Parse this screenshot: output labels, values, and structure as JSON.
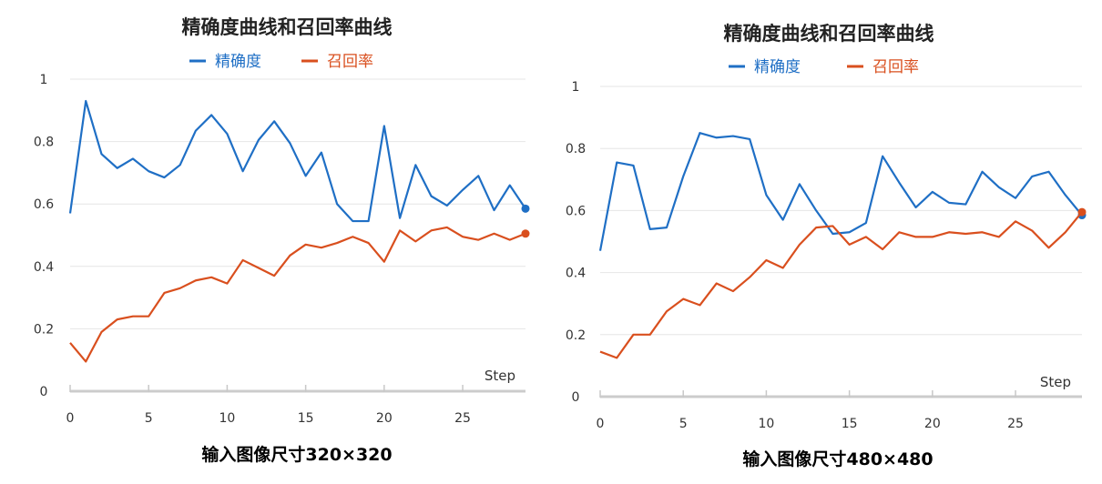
{
  "chart_data": [
    {
      "type": "line",
      "title": "精确度曲线和召回率曲线",
      "caption": "输入图像尺寸320×320",
      "xlabel": "Step",
      "ylabel": "",
      "xlim": [
        0,
        29
      ],
      "ylim": [
        0,
        1
      ],
      "yticks": [
        "0",
        "0.2",
        "0.4",
        "0.6",
        "0.8",
        "1"
      ],
      "xticks": [
        "0",
        "5",
        "10",
        "15",
        "20",
        "25"
      ],
      "grid": true,
      "legend_position": "top-center",
      "series": [
        {
          "name": "精确度",
          "color": "#1f6fc5",
          "values": [
            0.57,
            0.93,
            0.76,
            0.715,
            0.745,
            0.705,
            0.685,
            0.725,
            0.835,
            0.885,
            0.825,
            0.705,
            0.805,
            0.865,
            0.795,
            0.69,
            0.765,
            0.6,
            0.545,
            0.545,
            0.85,
            0.555,
            0.725,
            0.625,
            0.595,
            0.645,
            0.69,
            0.58,
            0.66,
            0.585
          ]
        },
        {
          "name": "召回率",
          "color": "#d94f1e",
          "values": [
            0.155,
            0.095,
            0.19,
            0.23,
            0.24,
            0.24,
            0.315,
            0.33,
            0.355,
            0.365,
            0.345,
            0.42,
            0.395,
            0.37,
            0.435,
            0.47,
            0.46,
            0.475,
            0.495,
            0.475,
            0.415,
            0.515,
            0.48,
            0.515,
            0.525,
            0.495,
            0.485,
            0.505,
            0.485,
            0.505
          ]
        }
      ]
    },
    {
      "type": "line",
      "title": "精确度曲线和召回率曲线",
      "caption": "输入图像尺寸480×480",
      "xlabel": "Step",
      "ylabel": "",
      "xlim": [
        0,
        29
      ],
      "ylim": [
        0,
        1
      ],
      "yticks": [
        "0",
        "0.2",
        "0.4",
        "0.6",
        "0.8",
        "1"
      ],
      "xticks": [
        "0",
        "5",
        "10",
        "15",
        "20",
        "25"
      ],
      "grid": true,
      "legend_position": "top-center",
      "series": [
        {
          "name": "精确度",
          "color": "#1f6fc5",
          "values": [
            0.47,
            0.755,
            0.745,
            0.54,
            0.545,
            0.71,
            0.85,
            0.835,
            0.84,
            0.83,
            0.65,
            0.57,
            0.685,
            0.6,
            0.525,
            0.53,
            0.56,
            0.775,
            0.69,
            0.61,
            0.66,
            0.625,
            0.62,
            0.725,
            0.675,
            0.64,
            0.71,
            0.725,
            0.65,
            0.585
          ]
        },
        {
          "name": "召回率",
          "color": "#d94f1e",
          "values": [
            0.145,
            0.125,
            0.2,
            0.2,
            0.275,
            0.315,
            0.295,
            0.365,
            0.34,
            0.385,
            0.44,
            0.415,
            0.49,
            0.545,
            0.55,
            0.49,
            0.515,
            0.475,
            0.53,
            0.515,
            0.515,
            0.53,
            0.525,
            0.53,
            0.515,
            0.565,
            0.535,
            0.48,
            0.53,
            0.595
          ]
        }
      ]
    }
  ]
}
